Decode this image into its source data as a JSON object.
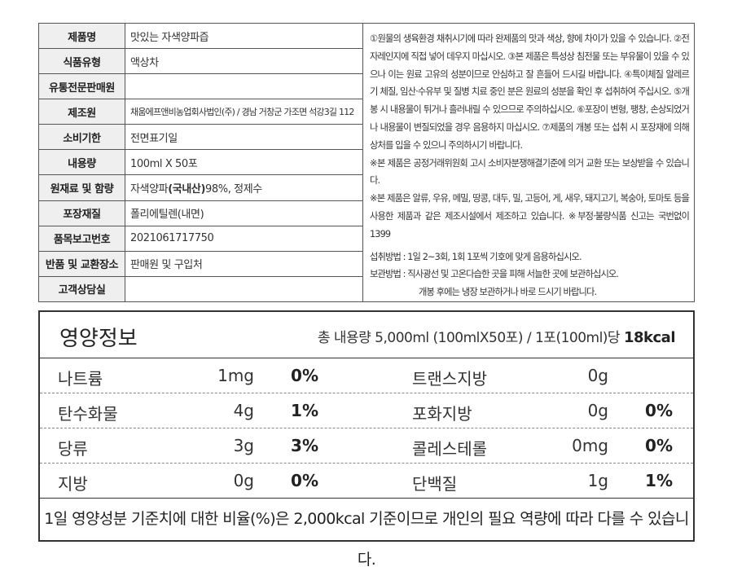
{
  "info": {
    "rows": [
      {
        "label": "제품명",
        "value": "맛있는 자색양파즙"
      },
      {
        "label": "식품유형",
        "value": "액상차"
      },
      {
        "label": "유통전문판매원"
      },
      {
        "label": "제조원",
        "value": "채움에프앤비농업회사법인(주) / 경남 거창군 가조면 석강3길 112"
      },
      {
        "label": "소비기한",
        "value": "전면표기일"
      },
      {
        "label": "내용량",
        "value": "100ml X 50포"
      },
      {
        "label": "원재료 및 함량",
        "value_parts": [
          "자색양파",
          "(국내산)",
          "98%, 정제수"
        ]
      },
      {
        "label": "포장재질",
        "value": "폴리에틸렌(내면)"
      },
      {
        "label": "품목보고번호",
        "value": "2021061717750"
      },
      {
        "label": "반품 및 교환장소",
        "value": "판매원 및 구입처"
      },
      {
        "label": "고객상담실"
      }
    ],
    "notes": [
      "①원물의 생육환경 채취시기에 따라 완제품의 맛과 색상, 향에 차이가 있을 수 있습니다. ②전자레인지에 직접 넣어 데우지 마십시오. ③본 제품은 특성상 침전물 또는 부유물이 있을 수 있으나 이는 원료 고유의 성분이므로 안심하고 잘 흔들어 드시길 바랍니다. ④특이체질 알레르기 체질, 임산·수유부 및 질병 치료 중인 분은 원료의 성분을 확인 후 섭취하여 주십시오. ⑤개봉 시 내용물이 튀거나 흘러내릴 수 있으므로 주의하십시오. ⑥포장이 변형, 팽창, 손상되었거나 내용물이 변질되었을 경우 음용하지 마십시오. ⑦제품의 개봉 또는 섭취 시 포장재에 의해 상처를 입을 수 있으니 주의하시기 바랍니다.",
      "※본 제품은 공정거래위원회 고시 소비자분쟁해결기준에 의거 교환 또는 보상받을 수 있습니다.",
      "※본 제품은 알류, 우유, 메밀, 땅콩, 대두, 밀, 고등어, 게, 새우, 돼지고기, 복숭아, 토마토 등을 사용한 제품과 같은 제조시설에서 제조하고 있습니다. ※부정·불량식품 신고는 국번없이 1399"
    ],
    "intake": "섭취방법 : 1일 2~3회, 1회 1포씩 기호에 맞게 음용하십시오.",
    "storage": [
      "보관방법 : 직사광선 및 고온다습한 곳을 피해 서늘한 곳에 보관하십시오.",
      "개봉 후에는 냉장 보관하거나 바로 드시기 바랍니다."
    ]
  },
  "nutrition": {
    "title": "영양정보",
    "serving": "총 내용량 5,000ml (100mlX50포) / 1포(100ml)당",
    "calories": "18kcal",
    "rows": [
      [
        {
          "name": "나트륨",
          "amount": "1mg",
          "percent": "0%"
        },
        {
          "name": "트랜스지방",
          "amount": "0g"
        }
      ],
      [
        {
          "name": "탄수화물",
          "amount": "4g",
          "percent": "1%"
        },
        {
          "name": "포화지방",
          "amount": "0g",
          "percent": "0%"
        }
      ],
      [
        {
          "name": "당류",
          "amount": "3g",
          "percent": "3%"
        },
        {
          "name": "콜레스테롤",
          "amount": "0mg",
          "percent": "0%"
        }
      ],
      [
        {
          "name": "지방",
          "amount": "0g",
          "percent": "0%"
        },
        {
          "name": "단백질",
          "amount": "1g",
          "percent": "1%"
        }
      ]
    ],
    "footnote": "1일 영양성분 기준치에 대한 비율(%)은 2,000kcal 기준이므로 개인의 필요 역량에 따라 다를 수 있습니다."
  }
}
